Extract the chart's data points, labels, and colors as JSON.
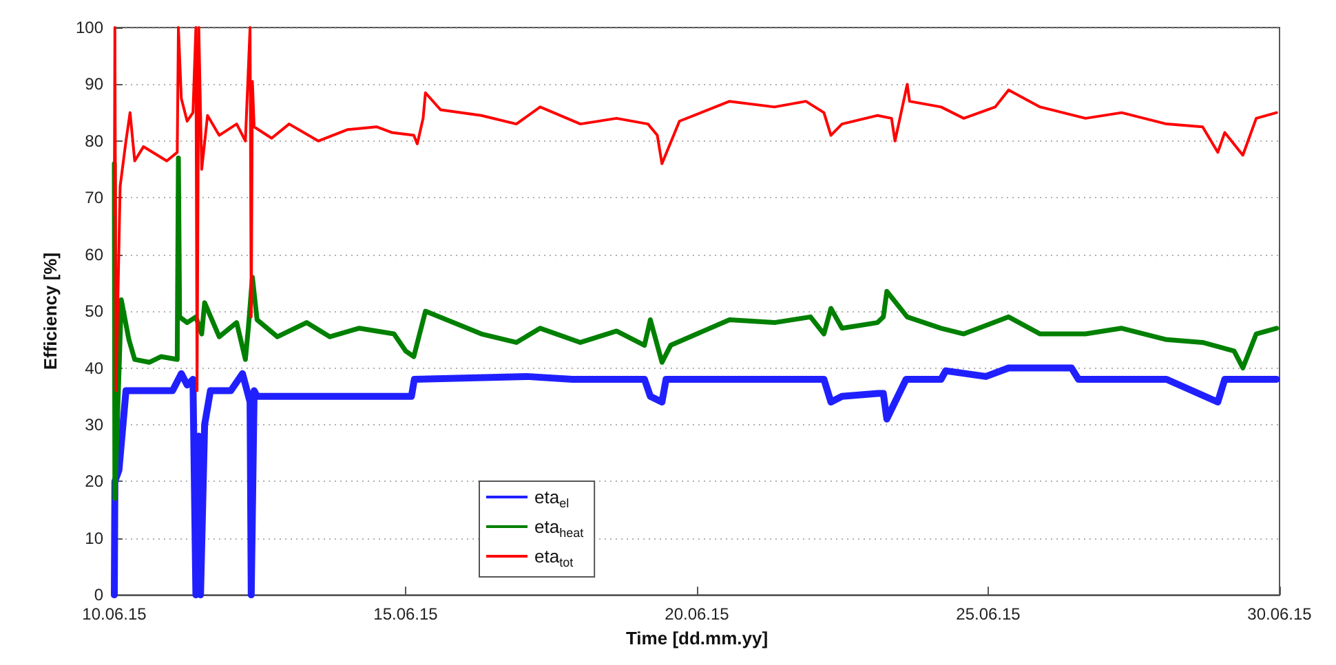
{
  "chart_data": {
    "type": "line",
    "xlabel": "Time [dd.mm.yy]",
    "ylabel": "Efficiency [%]",
    "xlim": [
      "--06-10",
      "--06-30"
    ],
    "xticks": [
      {
        "value": "--06-10",
        "label": "10.06.15"
      },
      {
        "value": "--06-15",
        "label": "15.06.15"
      },
      {
        "value": "--06-20",
        "label": "20.06.15"
      },
      {
        "value": "--06-25",
        "label": "25.06.15"
      },
      {
        "value": "--06-30",
        "label": "30.06.15"
      }
    ],
    "ylim": [
      0,
      100
    ],
    "yticks": [
      0,
      10,
      20,
      30,
      40,
      50,
      60,
      70,
      80,
      90,
      100
    ],
    "grid": "y",
    "legend": "bottom left",
    "marker": "none",
    "line_style": "solid",
    "series": [
      {
        "name": "eta$_{el}$",
        "color": "#2020ff",
        "x": [
          "--06-10T00:00",
          "--06-10T00:14",
          "--06-10T01:55",
          "--06-10T04:48",
          "--06-10T14:24",
          "--06-11T00:00",
          "--06-11T03:36",
          "--06-11T06:00",
          "--06-11T08:24",
          "--06-11T09:36",
          "--06-11T10:48",
          "--06-11T11:31",
          "--06-11T13:12",
          "--06-11T15:36",
          "--06-12T00:00",
          "--06-12T04:48",
          "--06-12T07:55",
          "--06-12T08:24",
          "--06-12T09:36",
          "--06-12T10:48",
          "--06-13T12:00",
          "--06-14T18:14",
          "--06-15T02:24",
          "--06-15T03:36",
          "--06-17T01:55",
          "--06-17T20:38",
          "--06-19T02:24",
          "--06-19T04:48",
          "--06-19T09:36",
          "--06-19T11:17",
          "--06-20T04:05",
          "--06-20T22:34",
          "--06-22T04:19",
          "--06-22T07:12",
          "--06-22T11:46",
          "--06-23T02:24",
          "--06-23T04:48",
          "--06-23T06:14",
          "--06-23T09:36",
          "--06-23T14:10",
          "--06-24T04:34",
          "--06-24T06:29",
          "--06-24T23:02",
          "--06-25T08:24",
          "--06-26T10:19",
          "--06-26T13:12",
          "--06-28T01:26",
          "--06-28T22:34",
          "--06-29T01:26",
          "--06-29T08:53",
          "--06-29T22:48"
        ],
        "values": [
          0,
          20,
          22,
          36,
          36,
          36,
          39,
          37,
          38,
          0,
          28,
          0,
          30,
          36,
          36,
          39,
          34,
          0,
          36,
          35,
          35,
          35,
          35,
          38,
          38.5,
          38,
          38,
          35,
          34,
          38,
          38,
          38,
          38,
          34,
          35,
          35.5,
          35.5,
          31,
          34,
          38,
          38,
          39.5,
          38.5,
          40,
          40,
          38,
          38,
          34,
          38,
          38,
          38
        ]
      },
      {
        "name": "eta$_{heat}$",
        "color": "#008000",
        "x": [
          "--06-10T00:00",
          "--06-10T00:14",
          "--06-10T02:53",
          "--06-10T06:00",
          "--06-10T08:24",
          "--06-10T14:24",
          "--06-10T19:12",
          "--06-11T01:55",
          "--06-11T02:24",
          "--06-11T02:53",
          "--06-11T06:00",
          "--06-11T09:36",
          "--06-11T12:00",
          "--06-11T13:12",
          "--06-11T19:12",
          "--06-12T02:24",
          "--06-12T06:00",
          "--06-12T07:12",
          "--06-12T08:53",
          "--06-12T10:48",
          "--06-12T19:12",
          "--06-13T07:12",
          "--06-13T16:48",
          "--06-14T04:48",
          "--06-14T19:12",
          "--06-15T00:00",
          "--06-15T03:22",
          "--06-15T08:10",
          "--06-16T07:12",
          "--06-16T21:36",
          "--06-17T07:26",
          "--06-18T00:00",
          "--06-18T14:53",
          "--06-19T02:24",
          "--06-19T04:48",
          "--06-19T09:36",
          "--06-19T13:12",
          "--06-20T13:26",
          "--06-21T07:55",
          "--06-21T22:48",
          "--06-22T04:19",
          "--06-22T07:12",
          "--06-22T11:46",
          "--06-23T02:24",
          "--06-23T04:48",
          "--06-23T06:14",
          "--06-23T14:38",
          "--06-24T04:34",
          "--06-24T13:55",
          "--06-25T08:24",
          "--06-25T21:22",
          "--06-26T16:05",
          "--06-27T06:58",
          "--06-28T01:26",
          "--06-28T16:19",
          "--06-29T05:17",
          "--06-29T08:53",
          "--06-29T14:24",
          "--06-29T22:48"
        ],
        "values": [
          76,
          17,
          52,
          45,
          41.5,
          41,
          42,
          41.5,
          77,
          49,
          48,
          49,
          46,
          51.5,
          45.5,
          48,
          41.5,
          47,
          56,
          48.5,
          45.5,
          48,
          45.5,
          47,
          46,
          43,
          42,
          50,
          46,
          44.5,
          47,
          44.5,
          46.5,
          44,
          48.5,
          41,
          44,
          48.5,
          48,
          49,
          46,
          50.5,
          47,
          48,
          49,
          53.5,
          49,
          47,
          46,
          49,
          46,
          46,
          47,
          45,
          44.5,
          43,
          40,
          46,
          47
        ]
      },
      {
        "name": "eta$_{tot}$",
        "color": "#ff0000",
        "x": [
          "--06-10T00:00",
          "--06-10T00:14",
          "--06-10T00:43",
          "--06-10T02:24",
          "--06-10T04:48",
          "--06-10T06:29",
          "--06-10T08:24",
          "--06-10T12:00",
          "--06-10T21:36",
          "--06-11T01:55",
          "--06-11T02:24",
          "--06-11T03:36",
          "--06-11T06:00",
          "--06-11T08:24",
          "--06-11T09:36",
          "--06-11T10:05",
          "--06-11T10:48",
          "--06-11T12:00",
          "--06-11T14:24",
          "--06-11T19:12",
          "--06-12T02:24",
          "--06-12T06:00",
          "--06-12T07:55",
          "--06-12T08:24",
          "--06-12T08:53",
          "--06-12T09:36",
          "--06-12T16:48",
          "--06-13T00:00",
          "--06-13T12:00",
          "--06-14T00:00",
          "--06-14T12:00",
          "--06-14T18:14",
          "--06-15T03:22",
          "--06-15T04:48",
          "--06-15T07:12",
          "--06-15T08:10",
          "--06-15T14:24",
          "--06-16T07:12",
          "--06-16T21:36",
          "--06-17T07:26",
          "--06-18T00:00",
          "--06-18T14:53",
          "--06-19T03:50",
          "--06-19T07:41",
          "--06-19T09:36",
          "--06-19T16:48",
          "--06-20T13:26",
          "--06-21T07:55",
          "--06-21T20:53",
          "--06-22T04:19",
          "--06-22T07:12",
          "--06-22T11:46",
          "--06-23T02:24",
          "--06-23T08:10",
          "--06-23T09:36",
          "--06-23T14:38",
          "--06-23T15:36",
          "--06-24T04:34",
          "--06-24T13:55",
          "--06-25T02:53",
          "--06-25T08:24",
          "--06-25T21:22",
          "--06-26T16:05",
          "--06-27T06:58",
          "--06-28T01:26",
          "--06-28T16:19",
          "--06-28T22:34",
          "--06-29T01:26",
          "--06-29T08:53",
          "--06-29T14:24",
          "--06-29T22:48"
        ],
        "values": [
          67,
          100,
          36,
          72,
          80,
          85,
          76.5,
          79,
          76.5,
          78,
          100,
          87.5,
          83.5,
          85,
          100,
          36,
          100,
          75,
          84.5,
          81,
          83,
          80,
          100,
          49,
          90.5,
          82.5,
          80.5,
          83,
          80,
          82,
          82.5,
          81.5,
          81,
          79.5,
          84,
          88.5,
          85.5,
          84.5,
          83,
          86,
          83,
          84,
          83,
          81,
          76,
          83.5,
          87,
          86,
          87,
          85,
          81,
          83,
          84.5,
          84,
          80,
          90,
          87,
          86,
          84,
          86,
          89,
          86,
          84,
          85,
          83,
          82.5,
          78,
          81.5,
          77.5,
          84,
          85
        ]
      }
    ]
  }
}
